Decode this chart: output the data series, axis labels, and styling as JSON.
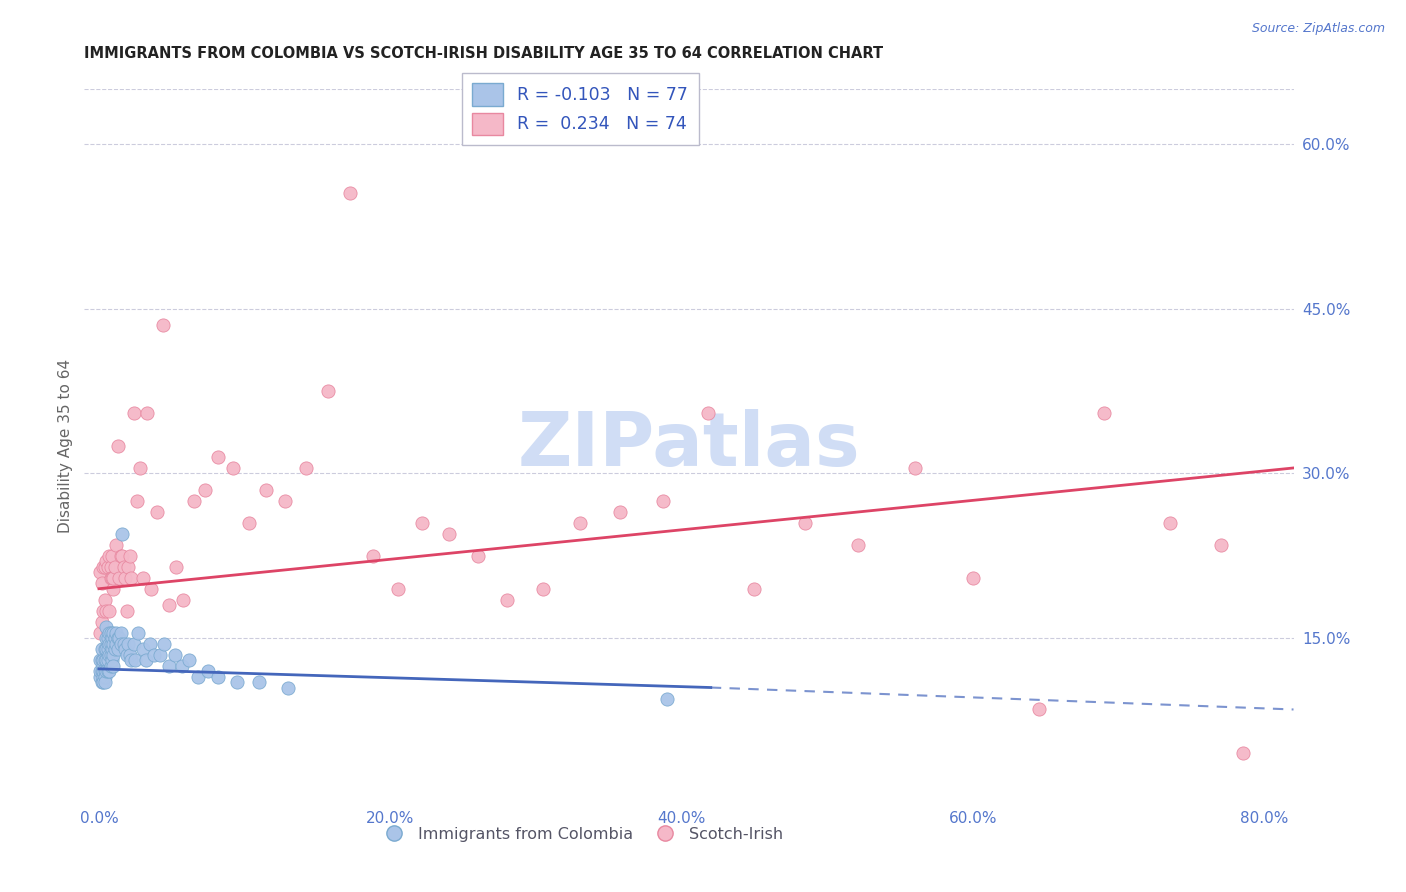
{
  "title": "IMMIGRANTS FROM COLOMBIA VS SCOTCH-IRISH DISABILITY AGE 35 TO 64 CORRELATION CHART",
  "source": "Source: ZipAtlas.com",
  "xlabel_ticks": [
    "0.0%",
    "20.0%",
    "40.0%",
    "60.0%",
    "80.0%"
  ],
  "xlabel_vals": [
    0.0,
    0.2,
    0.4,
    0.6,
    0.8
  ],
  "ylabel": "Disability Age 35 to 64",
  "ylabel_ticks_right": [
    "60.0%",
    "45.0%",
    "30.0%",
    "15.0%"
  ],
  "ylabel_vals_right": [
    0.6,
    0.45,
    0.3,
    0.15
  ],
  "xlim": [
    -0.01,
    0.82
  ],
  "ylim": [
    0.0,
    0.65
  ],
  "blue_R": -0.103,
  "blue_N": 77,
  "pink_R": 0.234,
  "pink_N": 74,
  "blue_color": "#aac4e8",
  "blue_edge": "#7aaad0",
  "pink_color": "#f5b8c8",
  "pink_edge": "#e888a0",
  "blue_line_color": "#4466bb",
  "pink_line_color": "#dd4466",
  "watermark_color": "#d0ddf5",
  "bg_color": "#ffffff",
  "grid_color": "#ccccdd",
  "title_color": "#222222",
  "axis_label_color": "#5577cc",
  "legend_R_color": "#3355bb",
  "blue_line_x0": 0.0,
  "blue_line_y0": 0.122,
  "blue_line_x1": 0.42,
  "blue_line_y1": 0.105,
  "blue_line_dash_x1": 0.82,
  "blue_line_dash_y1": 0.085,
  "pink_line_x0": 0.0,
  "pink_line_y0": 0.195,
  "pink_line_x1": 0.82,
  "pink_line_y1": 0.305,
  "blue_scatter_x": [
    0.001,
    0.001,
    0.001,
    0.002,
    0.002,
    0.002,
    0.002,
    0.003,
    0.003,
    0.003,
    0.003,
    0.003,
    0.004,
    0.004,
    0.004,
    0.004,
    0.004,
    0.005,
    0.005,
    0.005,
    0.005,
    0.005,
    0.006,
    0.006,
    0.006,
    0.006,
    0.007,
    0.007,
    0.007,
    0.007,
    0.008,
    0.008,
    0.008,
    0.008,
    0.009,
    0.009,
    0.009,
    0.01,
    0.01,
    0.01,
    0.01,
    0.011,
    0.011,
    0.012,
    0.012,
    0.013,
    0.013,
    0.014,
    0.015,
    0.015,
    0.016,
    0.017,
    0.018,
    0.019,
    0.02,
    0.021,
    0.022,
    0.024,
    0.025,
    0.027,
    0.03,
    0.032,
    0.035,
    0.038,
    0.042,
    0.045,
    0.048,
    0.052,
    0.057,
    0.062,
    0.068,
    0.075,
    0.082,
    0.095,
    0.11,
    0.13,
    0.39
  ],
  "blue_scatter_y": [
    0.115,
    0.12,
    0.13,
    0.11,
    0.13,
    0.14,
    0.12,
    0.125,
    0.13,
    0.115,
    0.12,
    0.11,
    0.14,
    0.13,
    0.12,
    0.115,
    0.11,
    0.16,
    0.15,
    0.14,
    0.13,
    0.12,
    0.15,
    0.14,
    0.13,
    0.12,
    0.155,
    0.145,
    0.135,
    0.12,
    0.155,
    0.145,
    0.135,
    0.125,
    0.15,
    0.14,
    0.13,
    0.155,
    0.145,
    0.135,
    0.125,
    0.15,
    0.14,
    0.155,
    0.145,
    0.15,
    0.14,
    0.15,
    0.155,
    0.145,
    0.245,
    0.145,
    0.14,
    0.135,
    0.145,
    0.135,
    0.13,
    0.145,
    0.13,
    0.155,
    0.14,
    0.13,
    0.145,
    0.135,
    0.135,
    0.145,
    0.125,
    0.135,
    0.125,
    0.13,
    0.115,
    0.12,
    0.115,
    0.11,
    0.11,
    0.105,
    0.095
  ],
  "pink_scatter_x": [
    0.001,
    0.001,
    0.002,
    0.002,
    0.003,
    0.003,
    0.004,
    0.004,
    0.005,
    0.005,
    0.006,
    0.006,
    0.007,
    0.007,
    0.008,
    0.008,
    0.009,
    0.009,
    0.01,
    0.01,
    0.011,
    0.012,
    0.013,
    0.014,
    0.015,
    0.016,
    0.017,
    0.018,
    0.019,
    0.02,
    0.021,
    0.022,
    0.024,
    0.026,
    0.028,
    0.03,
    0.033,
    0.036,
    0.04,
    0.044,
    0.048,
    0.053,
    0.058,
    0.065,
    0.073,
    0.082,
    0.092,
    0.103,
    0.115,
    0.128,
    0.142,
    0.157,
    0.172,
    0.188,
    0.205,
    0.222,
    0.24,
    0.26,
    0.28,
    0.305,
    0.33,
    0.358,
    0.387,
    0.418,
    0.45,
    0.485,
    0.521,
    0.56,
    0.6,
    0.645,
    0.69,
    0.735,
    0.77,
    0.785
  ],
  "pink_scatter_y": [
    0.155,
    0.21,
    0.165,
    0.2,
    0.175,
    0.215,
    0.185,
    0.215,
    0.22,
    0.175,
    0.155,
    0.215,
    0.225,
    0.175,
    0.215,
    0.205,
    0.225,
    0.205,
    0.195,
    0.205,
    0.215,
    0.235,
    0.325,
    0.205,
    0.225,
    0.225,
    0.215,
    0.205,
    0.175,
    0.215,
    0.225,
    0.205,
    0.355,
    0.275,
    0.305,
    0.205,
    0.355,
    0.195,
    0.265,
    0.435,
    0.18,
    0.215,
    0.185,
    0.275,
    0.285,
    0.315,
    0.305,
    0.255,
    0.285,
    0.275,
    0.305,
    0.375,
    0.555,
    0.225,
    0.195,
    0.255,
    0.245,
    0.225,
    0.185,
    0.195,
    0.255,
    0.265,
    0.275,
    0.355,
    0.195,
    0.255,
    0.235,
    0.305,
    0.205,
    0.085,
    0.355,
    0.255,
    0.235,
    0.045
  ]
}
